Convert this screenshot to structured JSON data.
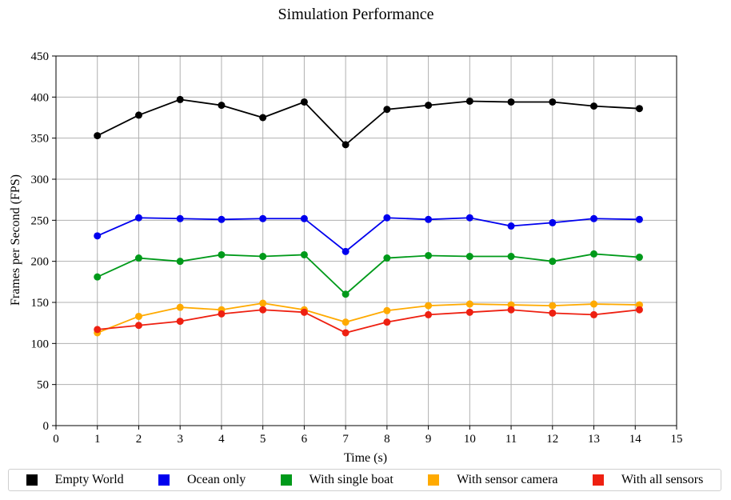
{
  "chart_data": {
    "type": "line",
    "title": "Simulation Performance",
    "xlabel": "Time (s)",
    "ylabel": "Frames per Second (FPS)",
    "xlim": [
      0,
      15
    ],
    "ylim": [
      0,
      450
    ],
    "xticks": [
      "0",
      "1",
      "2",
      "3",
      "4",
      "5",
      "6",
      "7",
      "8",
      "9",
      "10",
      "11",
      "12",
      "13",
      "14",
      "15"
    ],
    "yticks": [
      "0",
      "50",
      "100",
      "150",
      "200",
      "250",
      "300",
      "350",
      "400",
      "450"
    ],
    "grid": true,
    "legend_position": "bottom",
    "x": [
      1,
      2,
      3,
      4,
      5,
      6,
      7,
      8,
      9,
      10,
      11,
      12,
      13,
      14.1
    ],
    "series": [
      {
        "name": "Empty World",
        "color": "#000000",
        "values": [
          353,
          378,
          397,
          390,
          375,
          394,
          342,
          385,
          390,
          395,
          394,
          394,
          389,
          386
        ]
      },
      {
        "name": "Ocean only",
        "color": "#0000ee",
        "values": [
          231,
          253,
          252,
          251,
          252,
          252,
          212,
          253,
          251,
          253,
          243,
          247,
          252,
          251
        ]
      },
      {
        "name": "With single boat",
        "color": "#009a1a",
        "values": [
          181,
          204,
          200,
          208,
          206,
          208,
          160,
          204,
          207,
          206,
          206,
          200,
          209,
          205
        ]
      },
      {
        "name": "With sensor camera",
        "color": "#ffaa00",
        "values": [
          113,
          133,
          144,
          141,
          149,
          141,
          126,
          140,
          146,
          148,
          147,
          146,
          148,
          147
        ]
      },
      {
        "name": "With all sensors",
        "color": "#ee2011",
        "values": [
          117,
          122,
          127,
          136,
          141,
          138,
          113,
          126,
          135,
          138,
          141,
          137,
          135,
          141
        ]
      }
    ]
  }
}
